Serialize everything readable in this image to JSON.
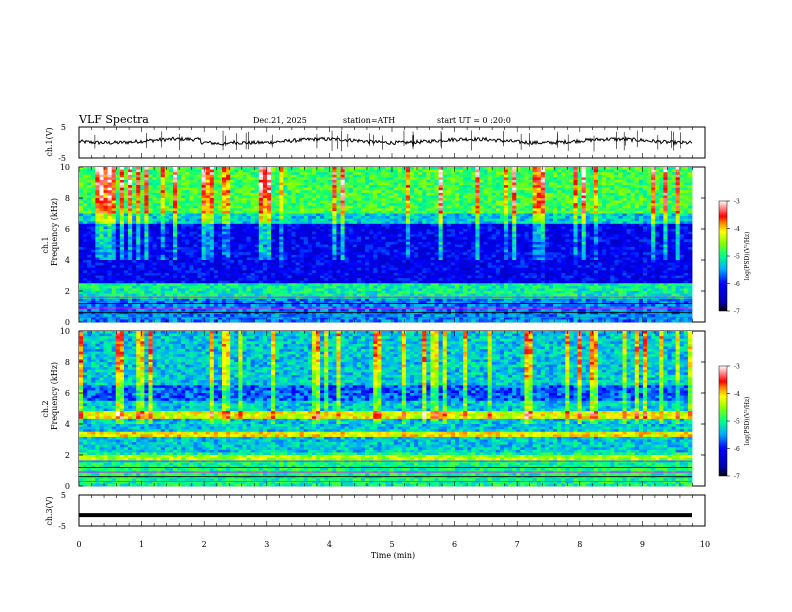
{
  "header": {
    "title": "VLF  Spectra",
    "date": "Dec.21, 2025",
    "station": "station=ATH",
    "start_ut": "start  UT  =   0  :20:0"
  },
  "chart_data": [
    {
      "type": "line",
      "name": "ch1-waveform",
      "ylabel": "ch.1(V)",
      "ylim": [
        -5,
        5
      ],
      "yticks": [
        "5",
        "-5"
      ],
      "baseline_v": 0.5,
      "color": "#000000"
    },
    {
      "type": "heatmap",
      "name": "ch1-spectrogram",
      "ylabel_top": "ch.1",
      "ylabel": "Frequency  (kHz)",
      "ylim": [
        0,
        10
      ],
      "yticks": [
        "0",
        "2",
        "4",
        "6",
        "8",
        "10"
      ],
      "colorbar": {
        "label": "log(PSD)(V²/Hz)",
        "ticks": [
          "-3",
          "-4",
          "-5",
          "-6",
          "-7"
        ],
        "range": [
          -7,
          -3
        ]
      }
    },
    {
      "type": "heatmap",
      "name": "ch2-spectrogram",
      "ylabel_top": "ch.2",
      "ylabel": "Frequency  (kHz)",
      "ylim": [
        0,
        10
      ],
      "yticks": [
        "0",
        "2",
        "4",
        "6",
        "8",
        "10"
      ],
      "colorbar": {
        "label": "log(PSD)(V²/Hz)",
        "ticks": [
          "-3",
          "-4",
          "-5",
          "-6",
          "-7"
        ],
        "range": [
          -7,
          -3
        ]
      }
    },
    {
      "type": "line",
      "name": "ch3-waveform",
      "ylabel": "ch.3(V)",
      "ylim": [
        -5,
        5
      ],
      "yticks": [
        "5",
        "-5"
      ],
      "baseline_v": -1.5,
      "color": "#000000"
    }
  ],
  "xaxis": {
    "label": "Time  (min)",
    "xlim": [
      0,
      10
    ],
    "ticks": [
      "0",
      "1",
      "2",
      "3",
      "4",
      "5",
      "6",
      "7",
      "8",
      "9",
      "10"
    ]
  },
  "colormap": [
    "#000000",
    "#0000ff",
    "#00aaff",
    "#00ff88",
    "#ffff00",
    "#ff0000",
    "#ffffff"
  ]
}
